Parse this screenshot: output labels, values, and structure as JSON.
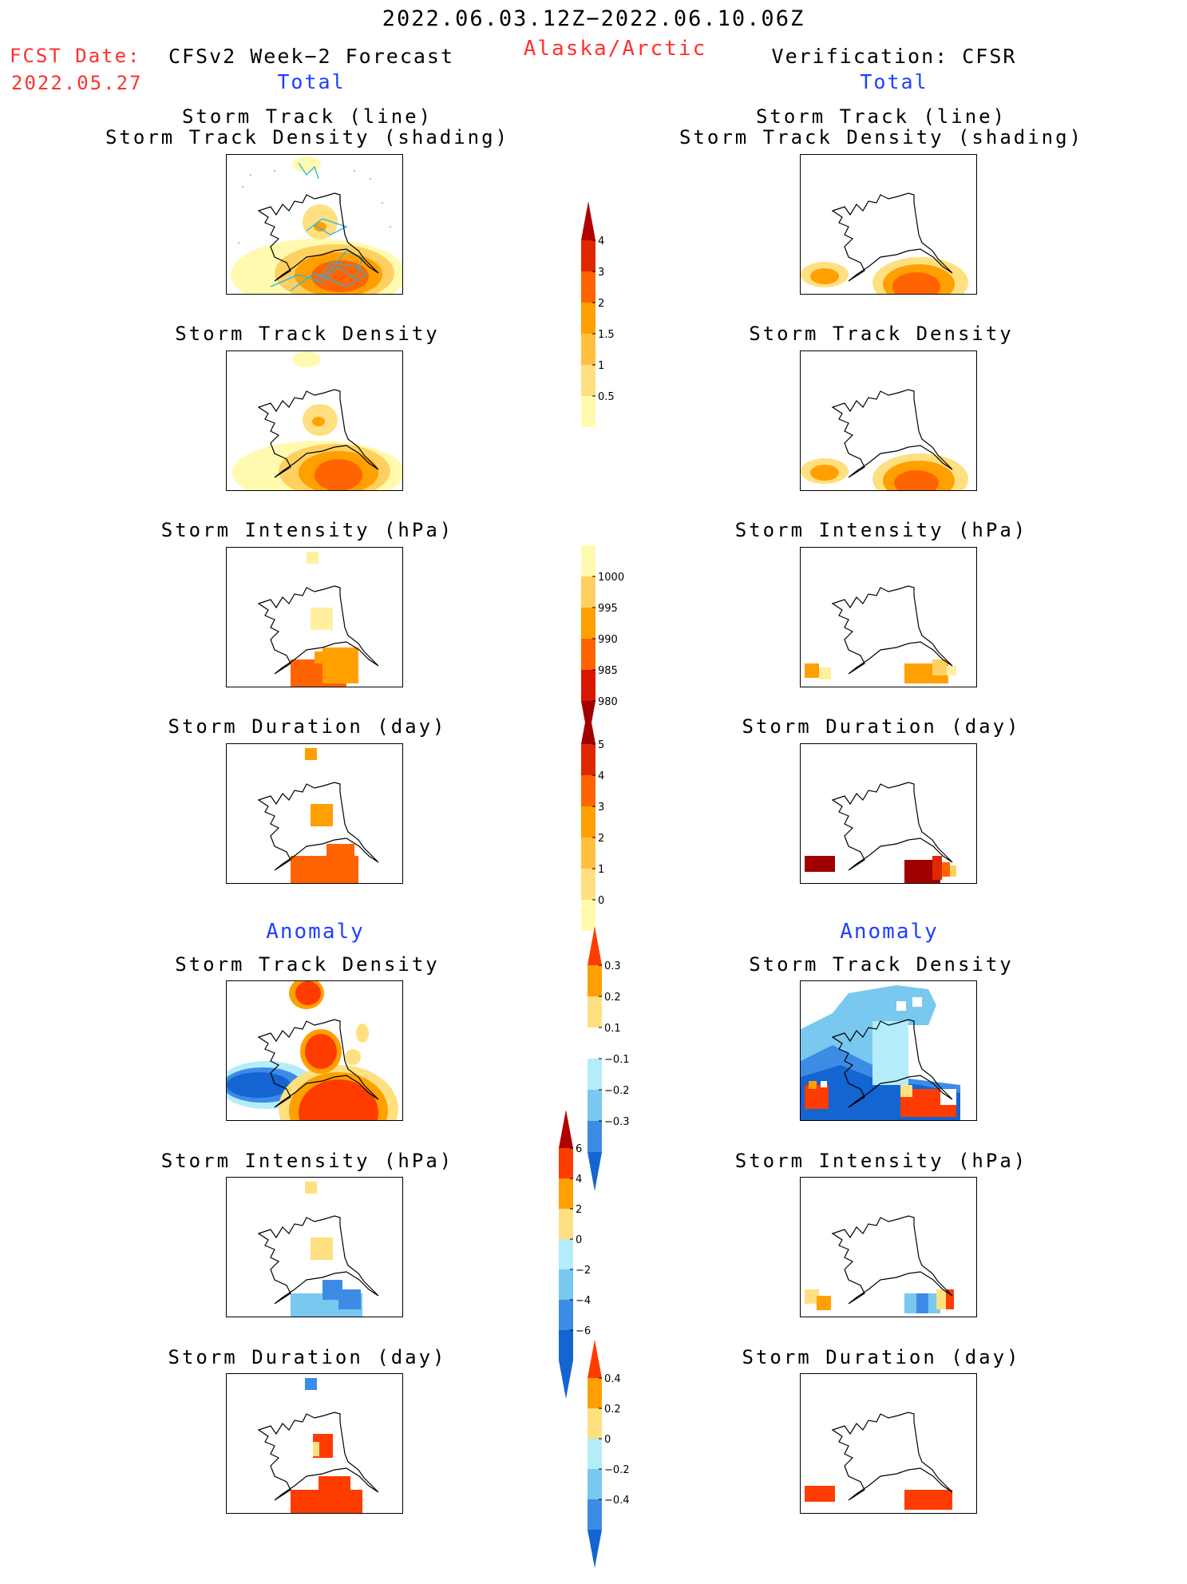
{
  "header": {
    "date_range": "2022.06.03.12Z−2022.06.10.06Z",
    "region": "Alaska/Arctic",
    "fcst_label": "FCST Date:",
    "fcst_date": "2022.05.27",
    "left_title": "CFSv2 Week−2 Forecast",
    "left_subtitle": "Total",
    "right_title": "Verification: CFSR",
    "right_subtitle": "Total"
  },
  "sections": {
    "anomaly_left": "Anomaly",
    "anomaly_right": "Anomaly"
  },
  "panel_titles": {
    "track_line": "Storm Track (line)",
    "track_shading": "Storm Track Density (shading)",
    "density": "Storm Track Density",
    "intensity": "Storm Intensity (hPa)",
    "duration": "Storm Duration (day)"
  },
  "colorbars": [
    {
      "name": "density-total-colorbar",
      "labels": [
        "4",
        "3",
        "2",
        "1.5",
        "1",
        "0.5"
      ],
      "colors": [
        "#b00000",
        "#e02800",
        "#ff6400",
        "#ffa000",
        "#ffc040",
        "#ffe080",
        "#fffab0"
      ]
    },
    {
      "name": "intensity-total-colorbar",
      "labels": [
        "1000",
        "995",
        "990",
        "985",
        "980"
      ],
      "colors": [
        "#fffab0",
        "#ffd060",
        "#ffa000",
        "#ff6400",
        "#d81800",
        "#a00000"
      ]
    },
    {
      "name": "duration-total-colorbar",
      "labels": [
        "5",
        "4",
        "3",
        "2",
        "1",
        "0"
      ],
      "colors": [
        "#a00000",
        "#e02800",
        "#ff6400",
        "#ffa000",
        "#ffc040",
        "#ffe080",
        "#fffab0"
      ]
    },
    {
      "name": "density-anomaly-colorbar",
      "labels": [
        "0.3",
        "0.2",
        "0.1",
        "−0.1",
        "−0.2",
        "−0.3"
      ],
      "colors": [
        "#ff3c00",
        "#ffa000",
        "#ffe080",
        "#ffffff",
        "#b4ecfa",
        "#78c8f0",
        "#3c8ce6",
        "#1464d2"
      ]
    },
    {
      "name": "intensity-anomaly-colorbar",
      "labels": [
        "6",
        "4",
        "2",
        "0",
        "−2",
        "−4",
        "−6"
      ],
      "colors": [
        "#b00000",
        "#ff3c00",
        "#ffa000",
        "#ffe080",
        "#b4ecfa",
        "#78c8f0",
        "#3c8ce6",
        "#1464d2",
        "#1464d2"
      ]
    },
    {
      "name": "duration-anomaly-colorbar",
      "labels": [
        "0.4",
        "0.2",
        "0",
        "−0.2",
        "−0.4"
      ],
      "colors": [
        "#ff3c00",
        "#ffa000",
        "#ffe080",
        "#b4ecfa",
        "#78c8f0",
        "#3c8ce6",
        "#1464d2"
      ]
    }
  ]
}
